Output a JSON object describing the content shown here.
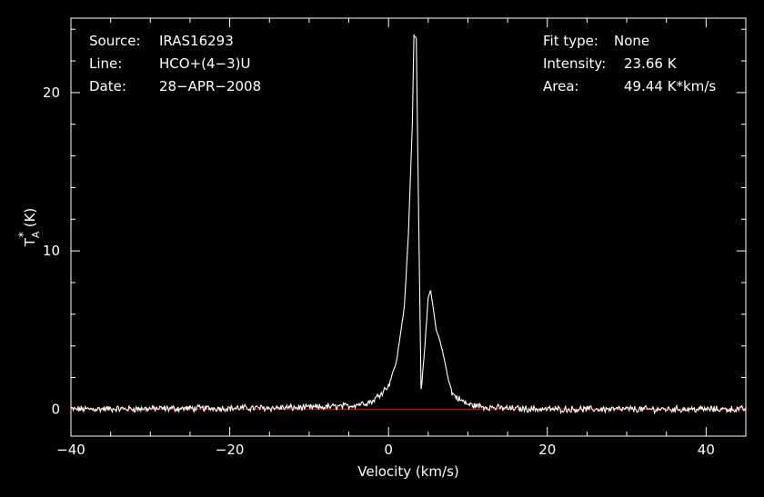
{
  "chart_data": {
    "type": "line",
    "title": "",
    "xlabel": "Velocity (km/s)",
    "ylabel": "T*A (K)",
    "xlim": [
      -40,
      45
    ],
    "ylim": [
      -1.7,
      24.7
    ],
    "x_ticks": [
      -40,
      -20,
      0,
      20,
      40
    ],
    "y_ticks": [
      0,
      10,
      20
    ],
    "x_tick_labels": [
      "−40",
      "−20",
      "0",
      "20",
      "40"
    ],
    "y_tick_labels": [
      "0",
      "10",
      "20"
    ],
    "grid": false,
    "baseline": {
      "y": 0,
      "color": "#cc0000"
    },
    "series": [
      {
        "color": "#ffffff",
        "line_profile": {
          "x": [
            -40,
            -10,
            -5,
            -2,
            0,
            1,
            2,
            2.5,
            3,
            3.2,
            3.5,
            3.8,
            4.1,
            4.5,
            5.0,
            5.3,
            5.6,
            6.0,
            6.5,
            7.0,
            7.5,
            8.0,
            9.0,
            10.0,
            12.0,
            15.0,
            20.0,
            45.0
          ],
          "y": [
            0,
            0.1,
            0.2,
            0.5,
            1.5,
            3.0,
            6.5,
            11.0,
            18.0,
            23.66,
            23.4,
            12.0,
            1.2,
            3.5,
            7.0,
            7.5,
            6.5,
            5.0,
            4.3,
            3.2,
            2.0,
            1.0,
            0.6,
            0.3,
            0.15,
            0.05,
            0.0,
            0
          ]
        }
      }
    ],
    "annotations": {
      "left": [
        {
          "key": "Source:",
          "value": "IRAS16293"
        },
        {
          "key": "Line:",
          "value": "HCO+(4−3)U"
        },
        {
          "key": "Date:",
          "value": "28−APR−2008"
        }
      ],
      "right": [
        {
          "key": "Fit type:",
          "value": "None"
        },
        {
          "key": "Intensity:",
          "value": "23.66 K"
        },
        {
          "key": "Area:",
          "value": "49.44 K*km/s"
        }
      ]
    }
  }
}
